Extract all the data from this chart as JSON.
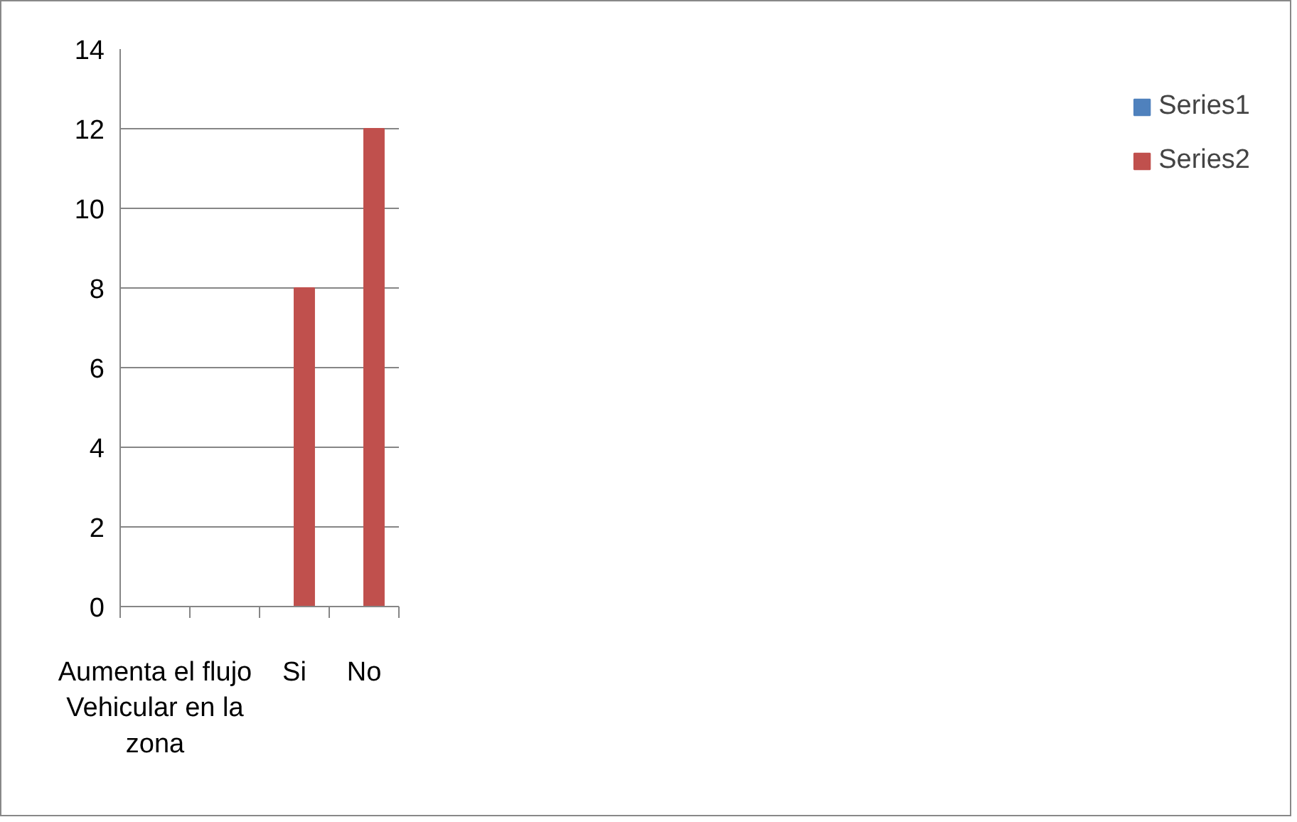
{
  "chart_data": {
    "type": "bar",
    "categories": [
      "Aumenta el flujo Vehicular en la zona",
      null,
      "Si",
      "No"
    ],
    "series": [
      {
        "name": "Series1",
        "color": "#4f81bd",
        "values": [
          null,
          null,
          null,
          null
        ]
      },
      {
        "name": "Series2",
        "color": "#c0504d",
        "values": [
          null,
          null,
          8,
          12
        ]
      }
    ],
    "ylim": [
      0,
      14
    ],
    "yticks": [
      0,
      2,
      4,
      6,
      8,
      10,
      12,
      14
    ],
    "grid": "y",
    "legend": "right"
  }
}
